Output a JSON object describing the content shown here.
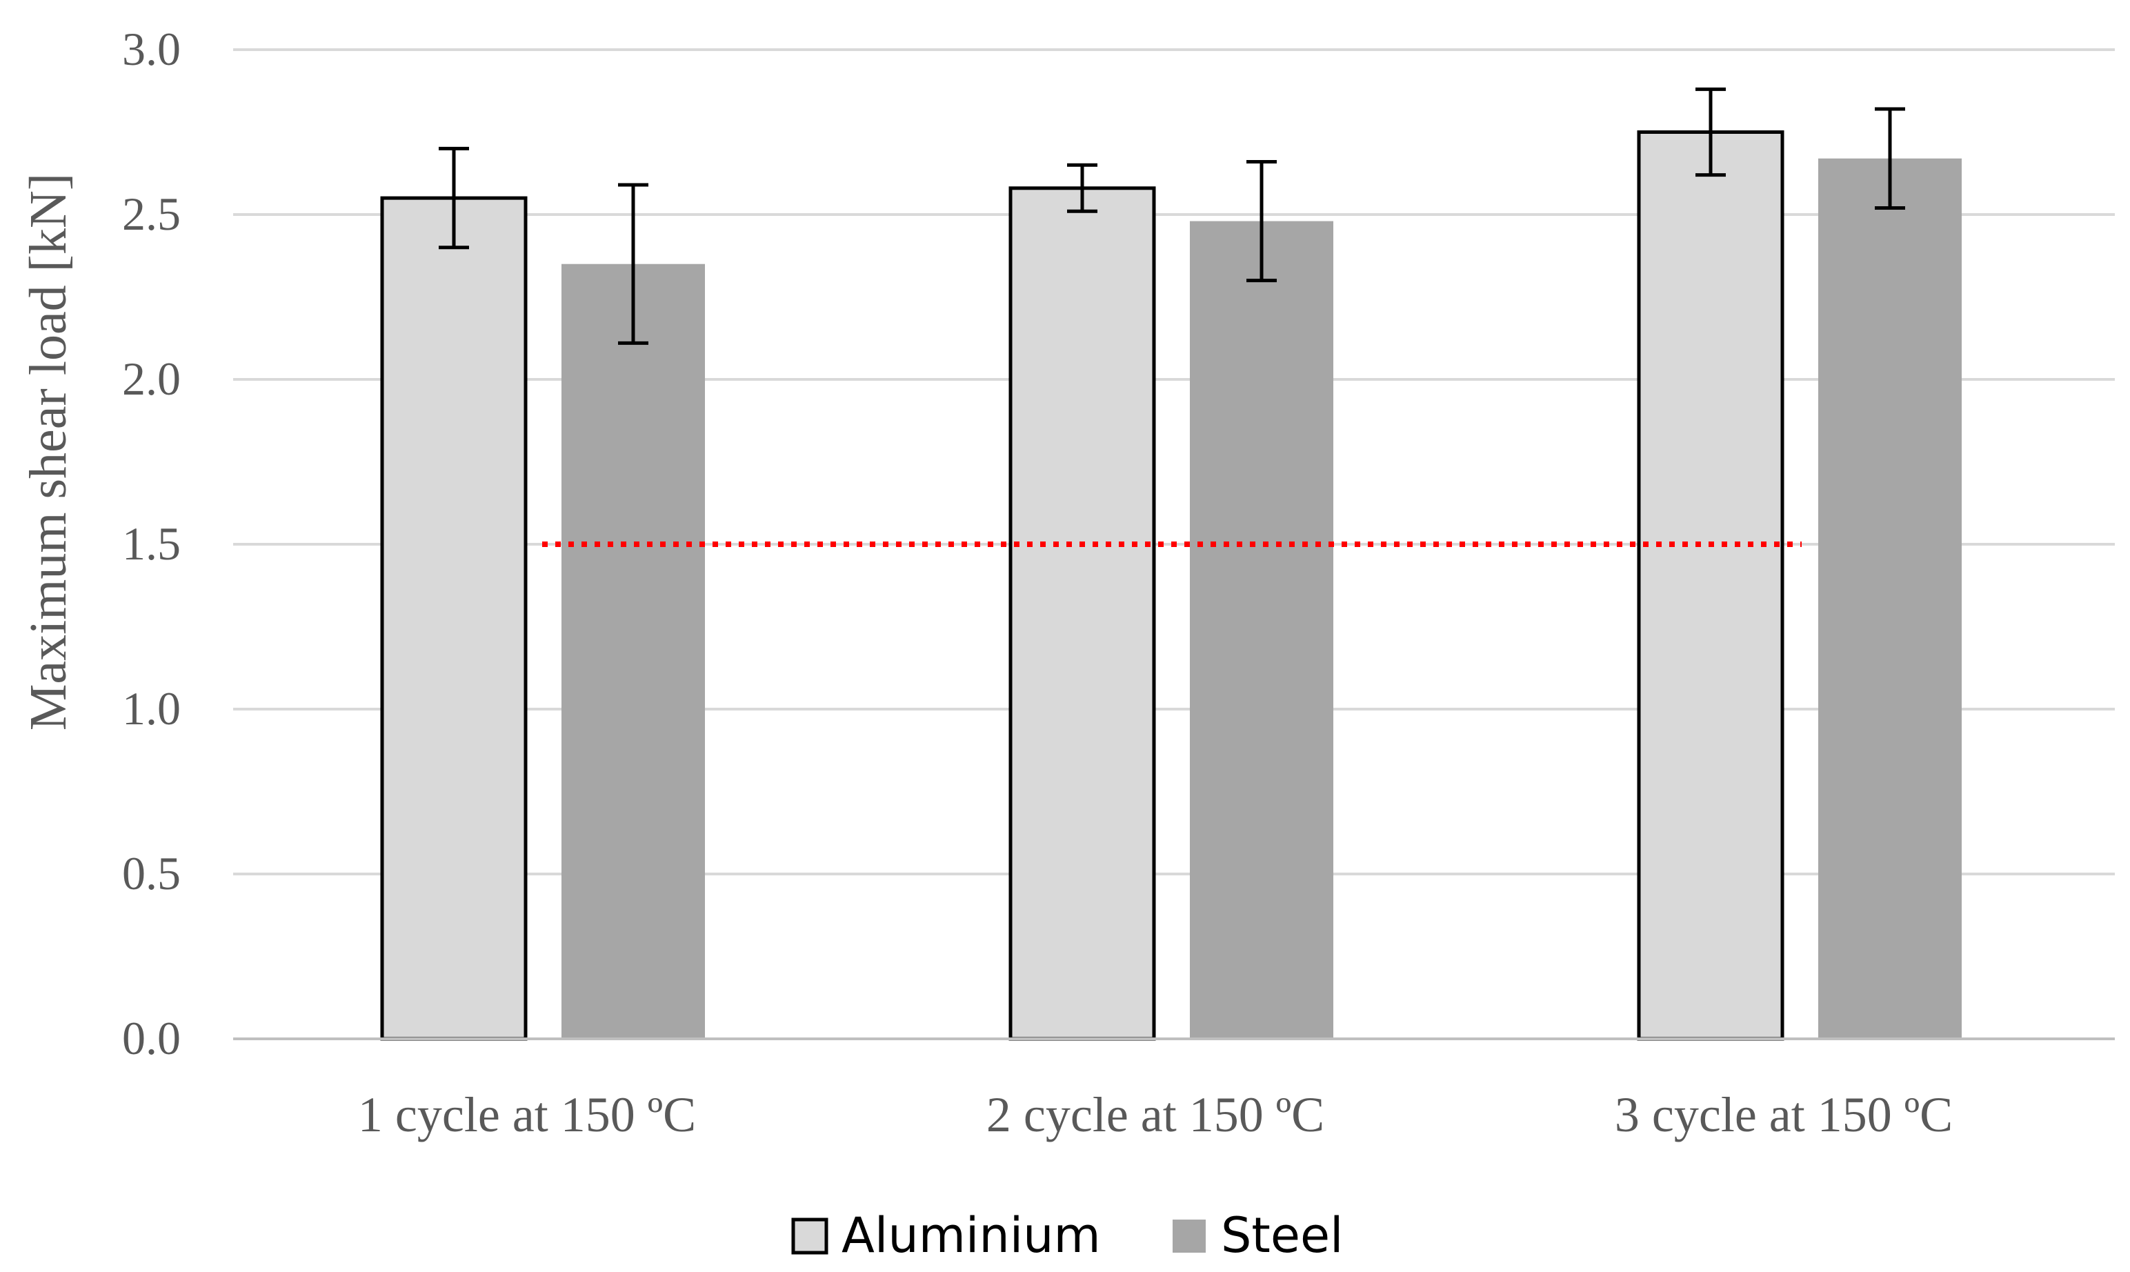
{
  "chart_data": {
    "type": "bar",
    "title": "",
    "xlabel": "",
    "ylabel": "Maximum shear load [kN]",
    "ylim": [
      0,
      3
    ],
    "yticks": [
      0,
      0.5,
      1,
      1.5,
      2,
      2.5,
      3
    ],
    "ytick_labels": [
      "0.0",
      "0.5",
      "1.0",
      "1.5",
      "2.0",
      "2.5",
      "3.0"
    ],
    "grid": true,
    "categories": [
      "1 cycle at 150 ºC",
      "2 cycle at 150 ºC",
      "3 cycle at 150 ºC"
    ],
    "series": [
      {
        "name": "Aluminium",
        "color": "#d9d9d9",
        "outline": "#000000",
        "values": [
          2.55,
          2.58,
          2.75
        ],
        "error": [
          0.15,
          0.07,
          0.13
        ]
      },
      {
        "name": "Steel",
        "color": "#a6a6a6",
        "outline": "none",
        "values": [
          2.35,
          2.48,
          2.67
        ],
        "error": [
          0.24,
          0.18,
          0.15
        ]
      }
    ],
    "reference_line": {
      "value": 1.5,
      "style": "dotted",
      "color": "#ff0000"
    },
    "legend": {
      "position": "bottom-center",
      "entries": [
        "Aluminium",
        "Steel"
      ]
    },
    "gridline_color": "#d9d9d9",
    "axis_color": "#bfbfbf"
  }
}
